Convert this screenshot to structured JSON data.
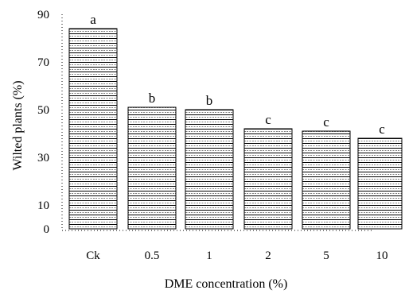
{
  "chart_data": {
    "type": "bar",
    "xlabel": "DME concentration (%)",
    "ylabel": "Wilted plants (%)",
    "categories": [
      "Ck",
      "0.5",
      "1",
      "2",
      "5",
      "10"
    ],
    "values": [
      84,
      51,
      50,
      42,
      41,
      38
    ],
    "significance_letters": [
      "a",
      "b",
      "b",
      "c",
      "c",
      "c"
    ],
    "y_ticks": [
      0,
      10,
      30,
      50,
      70,
      90
    ],
    "ylim": [
      0,
      90
    ],
    "grid": false,
    "legend": "none",
    "bar_fill": "horizontal hatched lines",
    "bar_color": "#000000"
  }
}
